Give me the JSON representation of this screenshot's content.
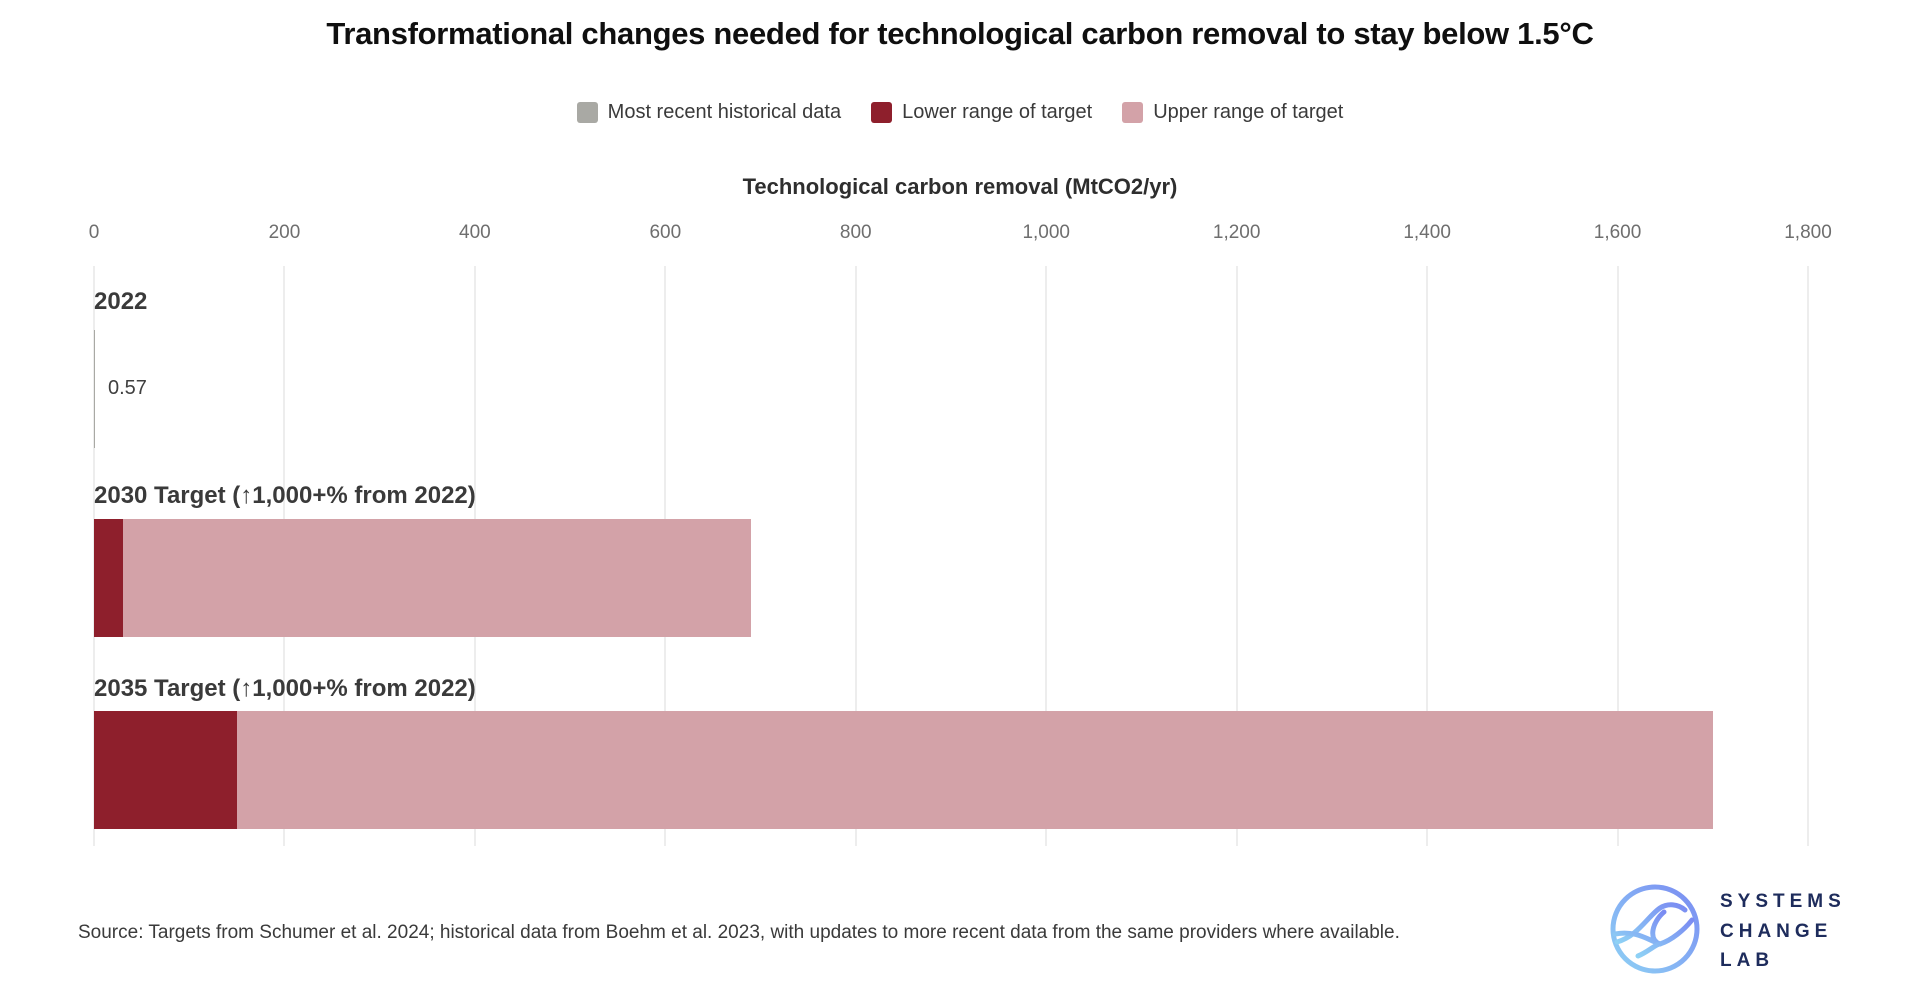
{
  "title": "Transformational changes needed for technological carbon removal to stay below 1.5°C",
  "legend": {
    "items": [
      {
        "key": "historical",
        "label": "Most recent historical data",
        "color": "#a9a9a4"
      },
      {
        "key": "lower",
        "label": "Lower range of target",
        "color": "#8e1f2c"
      },
      {
        "key": "upper",
        "label": "Upper range of target",
        "color": "#d3a2a8"
      }
    ]
  },
  "chart_data": {
    "type": "bar",
    "orientation": "horizontal",
    "title": "Transformational changes needed for technological carbon removal to stay below 1.5°C",
    "axis_title": "Technological carbon removal (MtCO2/yr)",
    "xlabel": "Technological carbon removal (MtCO2/yr)",
    "ylabel": "",
    "x_min": 0,
    "x_max": 1800,
    "x_ticks": [
      0,
      200,
      400,
      600,
      800,
      1000,
      1200,
      1400,
      1600,
      1800
    ],
    "x_tick_labels": [
      "0",
      "200",
      "400",
      "600",
      "800",
      "1,000",
      "1,200",
      "1,400",
      "1,600",
      "1,800"
    ],
    "grid": true,
    "legend_position": "top",
    "rows": [
      {
        "label": "2022",
        "value_label": "0.57",
        "segments": [
          {
            "series": "Most recent historical data",
            "color_key": "historical",
            "from": 0,
            "to": 0.57
          }
        ]
      },
      {
        "label": "2030 Target (↑1,000+% from 2022)",
        "segments": [
          {
            "series": "Lower range of target",
            "color_key": "lower",
            "from": 0,
            "to": 30
          },
          {
            "series": "Upper range of target",
            "color_key": "upper",
            "from": 30,
            "to": 690
          }
        ]
      },
      {
        "label": "2035 Target (↑1,000+% from 2022)",
        "segments": [
          {
            "series": "Lower range of target",
            "color_key": "lower",
            "from": 0,
            "to": 150
          },
          {
            "series": "Upper range of target",
            "color_key": "upper",
            "from": 150,
            "to": 1700
          }
        ]
      }
    ]
  },
  "footer": {
    "source": "Source: Targets from Schumer et al. 2024; historical data from Boehm et al. 2023, with updates to more recent data from the same providers where available.",
    "logo": {
      "name": "Systems Change Lab",
      "text": "SYSTEMS\nCHANGE\nLAB",
      "text_color": "#1e2c5c",
      "gradient_start": "#8ed1f5",
      "gradient_end": "#7a8bf2"
    }
  },
  "colors": {
    "gridline": "#ededed",
    "tick_label": "#6e6e6e",
    "row_label": "#3a3a3a",
    "title": "#0f0f0f"
  }
}
